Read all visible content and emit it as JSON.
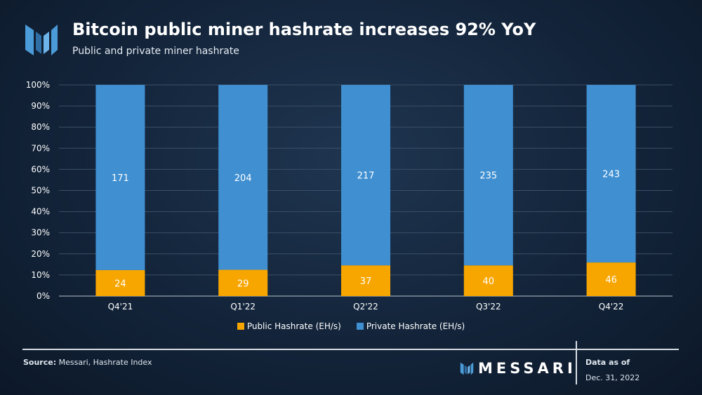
{
  "header": {
    "title": "Bitcoin public miner hashrate increases 92% YoY",
    "subtitle": "Public and private miner hashrate"
  },
  "footer": {
    "source_label": "Source:",
    "source_text": "Messari, Hashrate Index",
    "brand": "MESSARI",
    "as_of_label": "Data as of",
    "as_of_date": "Dec. 31, 2022"
  },
  "colors": {
    "public": "#f7a600",
    "private": "#3f8fd1",
    "grid": "#3b4f66",
    "axis_text": "#ffffff"
  },
  "chart_data": {
    "type": "bar",
    "stacked": true,
    "normalized": true,
    "categories": [
      "Q4'21",
      "Q1'22",
      "Q2'22",
      "Q3'22",
      "Q4'22"
    ],
    "series": [
      {
        "name": "Public Hashrate (EH/s)",
        "values": [
          24,
          29,
          37,
          40,
          46
        ],
        "color": "#f7a600"
      },
      {
        "name": "Private Hashrate (EH/s)",
        "values": [
          171,
          204,
          217,
          235,
          243
        ],
        "color": "#3f8fd1"
      }
    ],
    "y_ticks": [
      "0%",
      "10%",
      "20%",
      "30%",
      "40%",
      "50%",
      "60%",
      "70%",
      "80%",
      "90%",
      "100%"
    ],
    "ylim": [
      0,
      100
    ],
    "grid": true,
    "legend_position": "bottom"
  }
}
